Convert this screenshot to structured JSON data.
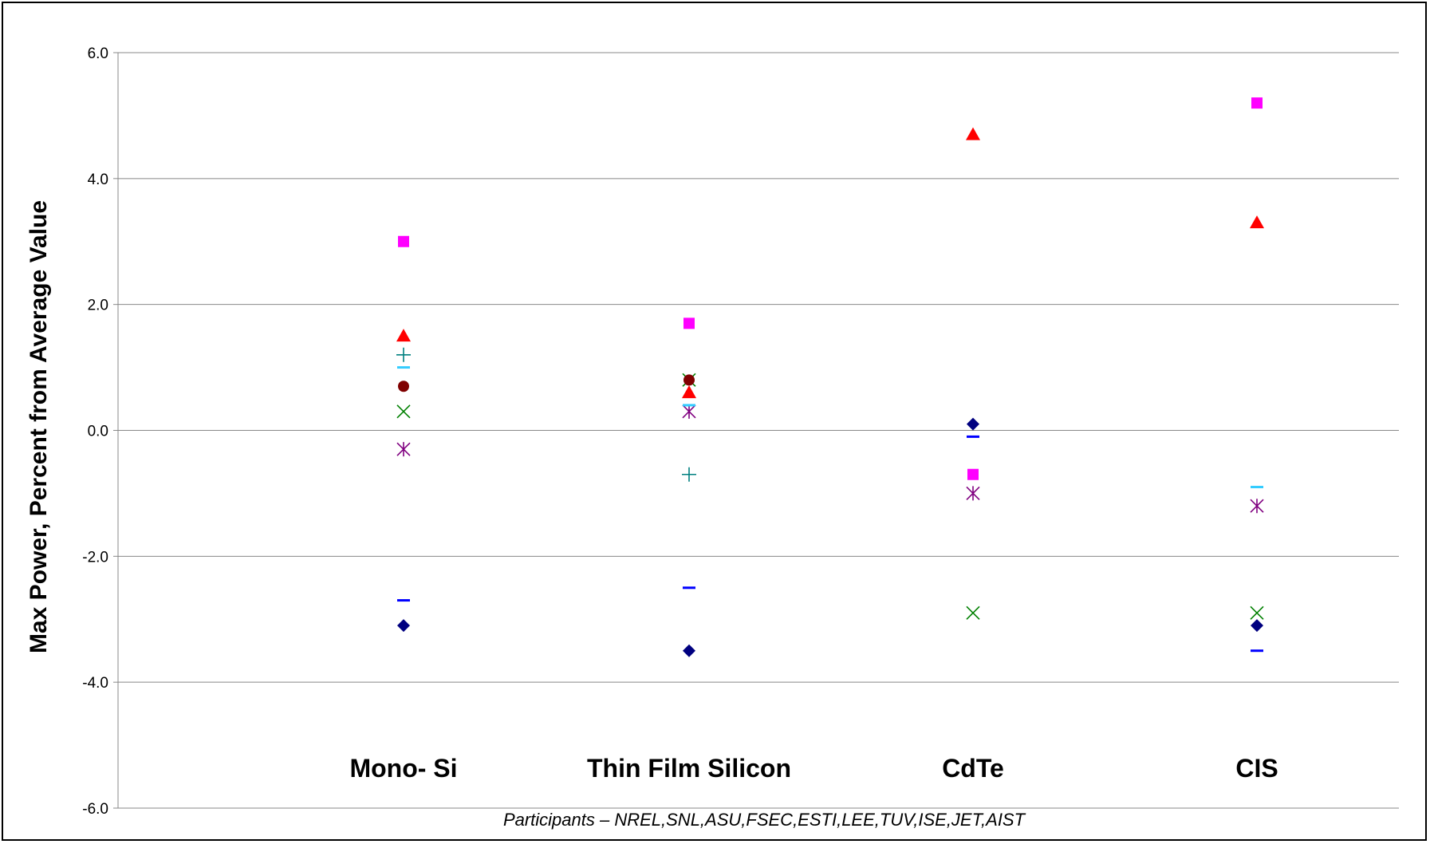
{
  "chart_data": {
    "type": "scatter",
    "title": "",
    "xlabel": "",
    "ylabel": "Max Power, Percent from Average Value",
    "footnote": "Participants – NREL,SNL,ASU,FSEC,ESTI,LEE,TUV,ISE,JET,AIST",
    "categories": [
      "Mono- Si",
      "Thin Film Silicon",
      "CdTe",
      "CIS"
    ],
    "ylim": [
      -6.0,
      6.0
    ],
    "yticks": [
      "6.0",
      "4.0",
      "2.0",
      "0.0",
      "-2.0",
      "-4.0",
      "-6.0"
    ],
    "ytick_values": [
      6,
      4,
      2,
      0,
      -2,
      -4,
      -6
    ],
    "grid": true,
    "legend": "none",
    "series": [
      {
        "marker": "diamond",
        "color": "#000080",
        "values": [
          -3.1,
          -3.5,
          0.1,
          -3.1
        ]
      },
      {
        "marker": "square",
        "color": "#ff00ff",
        "values": [
          3.0,
          1.7,
          -0.7,
          5.2
        ]
      },
      {
        "marker": "triangle",
        "color": "#ff0000",
        "values": [
          1.5,
          0.6,
          4.7,
          3.3
        ]
      },
      {
        "marker": "x",
        "color": "#008000",
        "values": [
          0.3,
          0.8,
          -2.9,
          -2.9
        ]
      },
      {
        "marker": "asterisk",
        "color": "#800080",
        "values": [
          -0.3,
          0.3,
          -1.0,
          -1.2
        ]
      },
      {
        "marker": "circle",
        "color": "#800000",
        "values": [
          0.7,
          0.8,
          null,
          null
        ]
      },
      {
        "marker": "plus",
        "color": "#008080",
        "values": [
          1.2,
          -0.7,
          null,
          null
        ]
      },
      {
        "marker": "dash",
        "color": "#33ccff",
        "values": [
          1.0,
          0.4,
          null,
          -0.9
        ]
      },
      {
        "marker": "dash",
        "color": "#0000ff",
        "values": [
          -2.7,
          -2.5,
          -0.1,
          -3.5
        ]
      }
    ]
  }
}
